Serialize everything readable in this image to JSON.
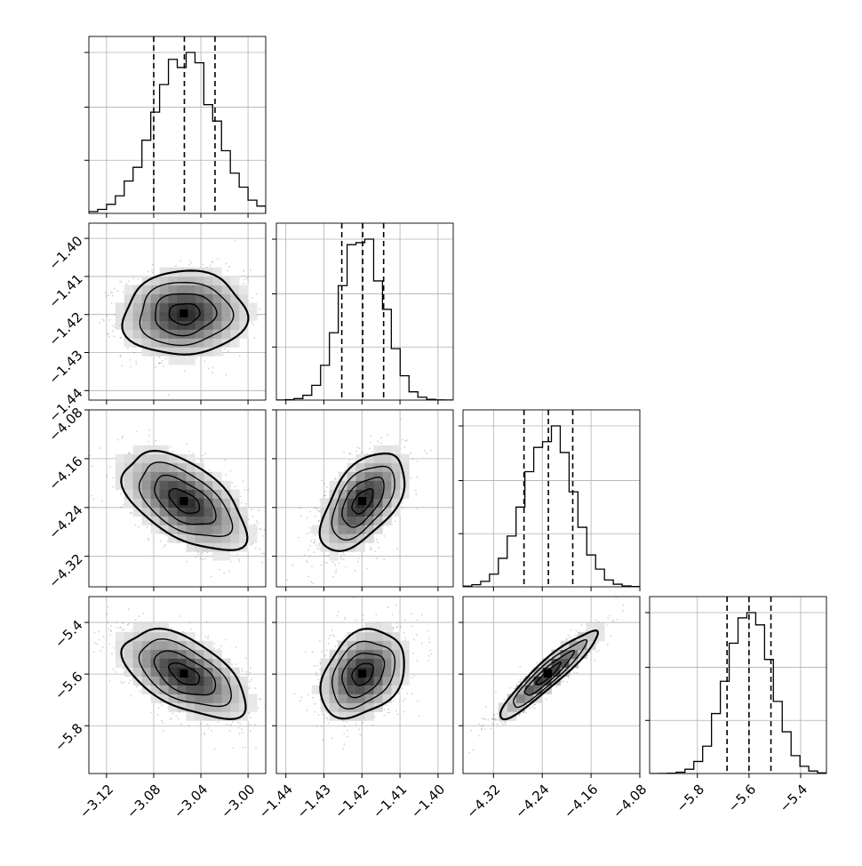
{
  "chart_data": {
    "type": "corner",
    "grid": true,
    "parameters": [
      {
        "index": 0,
        "range": [
          -3.135,
          -2.985
        ],
        "ticks": [
          -3.12,
          -3.08,
          -3.04,
          -3.0
        ],
        "tick_labels": [
          "−3.12",
          "−3.08",
          "−3.04",
          "−3.00"
        ],
        "quantiles": [
          -3.08,
          -3.054,
          -3.028
        ],
        "median": -3.054,
        "sigma": 0.026
      },
      {
        "index": 1,
        "range": [
          -1.4425,
          -1.396
        ],
        "ticks": [
          -1.44,
          -1.43,
          -1.42,
          -1.41,
          -1.4
        ],
        "tick_labels": [
          "−1.44",
          "−1.43",
          "−1.42",
          "−1.41",
          "−1.40"
        ],
        "quantiles": [
          -1.4253,
          -1.4198,
          -1.4143
        ],
        "median": -1.4198,
        "sigma": 0.0055
      },
      {
        "index": 2,
        "range": [
          -4.37,
          -4.08
        ],
        "ticks": [
          -4.32,
          -4.24,
          -4.16,
          -4.08
        ],
        "tick_labels": [
          "−4.32",
          "−4.24",
          "−4.16",
          "−4.08"
        ],
        "quantiles": [
          -4.27,
          -4.23,
          -4.19
        ],
        "median": -4.23,
        "sigma": 0.04
      },
      {
        "index": 3,
        "range": [
          -5.985,
          -5.3
        ],
        "ticks": [
          -5.8,
          -5.6,
          -5.4
        ],
        "tick_labels": [
          "−5.8",
          "−5.6",
          "−5.4"
        ],
        "quantiles": [
          -5.685,
          -5.6,
          -5.515
        ],
        "median": -5.6,
        "sigma": 0.085
      }
    ],
    "correlations": [
      {
        "row": 1,
        "col": 0,
        "rho": 0.05
      },
      {
        "row": 2,
        "col": 0,
        "rho": -0.55
      },
      {
        "row": 2,
        "col": 1,
        "rho": 0.55
      },
      {
        "row": 3,
        "col": 0,
        "rho": -0.55
      },
      {
        "row": 3,
        "col": 1,
        "rho": 0.3
      },
      {
        "row": 3,
        "col": 2,
        "rho": 0.93
      }
    ],
    "histogram_bins": 20,
    "contour_levels_sigma": [
      0.5,
      1.0,
      1.5,
      2.0
    ]
  }
}
